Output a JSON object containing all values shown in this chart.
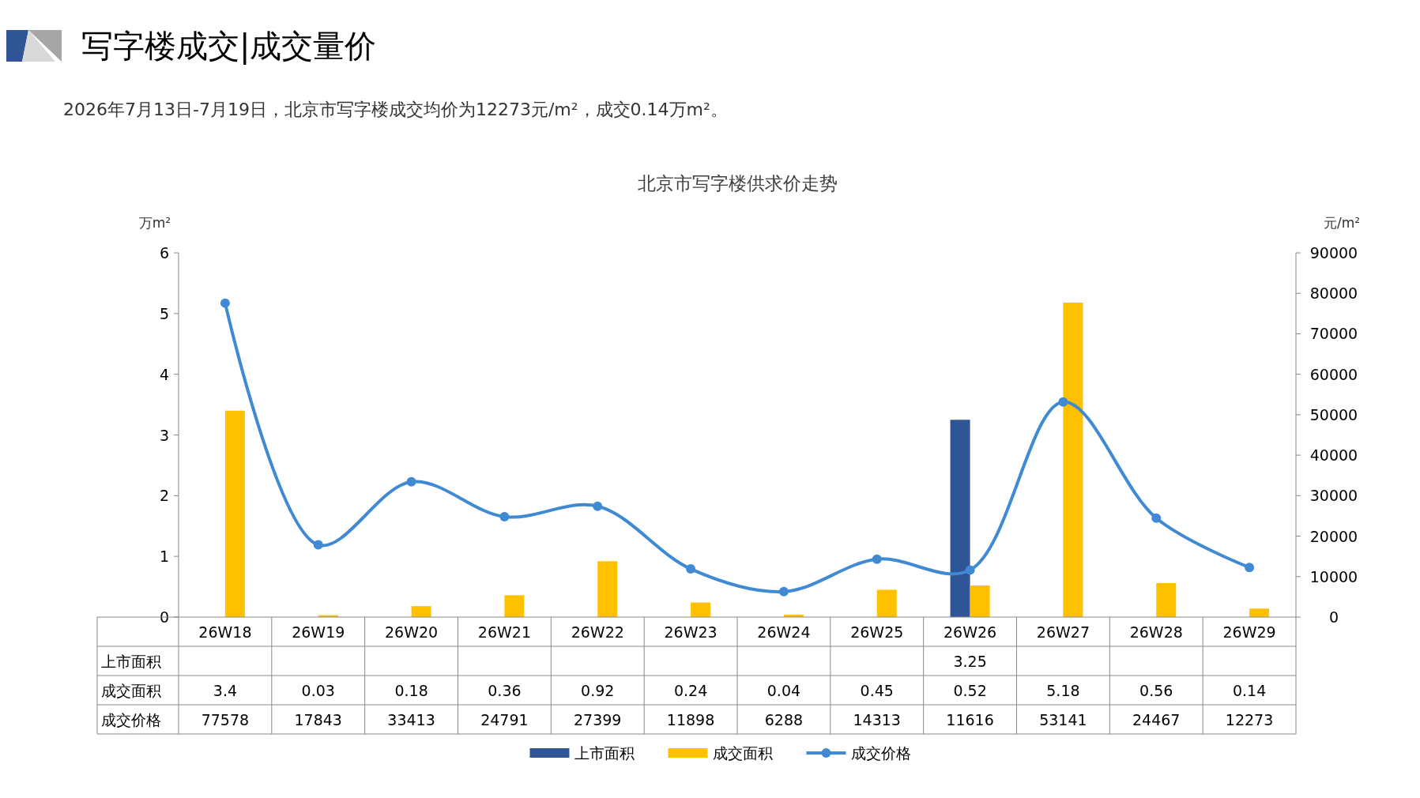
{
  "chart_data": {
    "type": "bar",
    "title": "北京市写字楼供求价走势",
    "subtitle": "2026年7月13日-7月19日，北京市写字楼成交均价为12273元/m²，成交0.14万m²。",
    "annotations": [
      "写字楼成交|成交量价"
    ],
    "ylabel": "万m²",
    "y2label": "元/m²",
    "categories": [
      "26W18",
      "26W19",
      "26W20",
      "26W21",
      "26W22",
      "26W23",
      "26W24",
      "26W25",
      "26W26",
      "26W27",
      "26W28",
      "26W29"
    ],
    "series": [
      {
        "name": "上市面积",
        "color": "#2f5597",
        "values": [
          null,
          null,
          null,
          null,
          null,
          null,
          null,
          null,
          3.25,
          null,
          null,
          null
        ]
      },
      {
        "name": "成交面积",
        "color": "#ffc000",
        "values": [
          3.4,
          0.03,
          0.18,
          0.36,
          0.92,
          0.24,
          0.04,
          0.45,
          0.52,
          5.18,
          0.56,
          0.14
        ]
      },
      {
        "name": "成交价格",
        "type": "line",
        "axis": "y2",
        "color": "#3f8ad3",
        "marker": "circle",
        "values": [
          77578,
          17843,
          33413,
          24791,
          27399,
          11898,
          6288,
          14313,
          11616,
          53141,
          24467,
          12273
        ]
      }
    ],
    "ylim": [
      0,
      6
    ],
    "yticks": [
      0,
      1,
      2,
      3,
      4,
      5,
      6
    ],
    "y2lim": [
      0,
      90000
    ],
    "y2ticks": [
      0,
      10000,
      20000,
      30000,
      40000,
      50000,
      60000,
      70000,
      80000,
      90000
    ],
    "data_labels": true,
    "grid": false,
    "legend": "bottom"
  }
}
